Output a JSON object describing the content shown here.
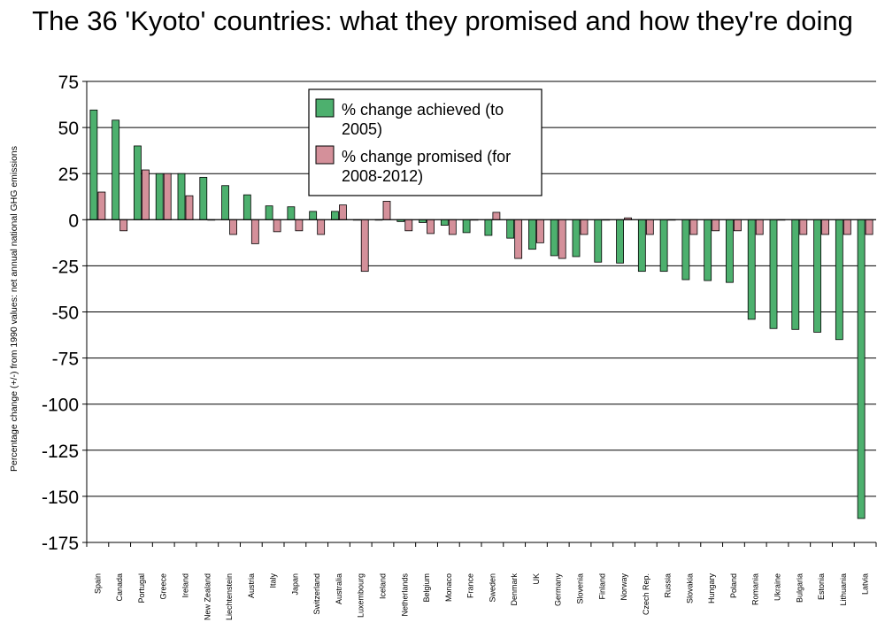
{
  "chart_data": {
    "type": "bar",
    "title": "The 36 'Kyoto' countries: what they promised and how they're doing",
    "ylabel": "Percentage change (+/-) from 1990 values: net annual national GHG emissions",
    "xlabel": "",
    "ylim": [
      -175,
      75
    ],
    "yticks": [
      75,
      50,
      25,
      0,
      -25,
      -50,
      -75,
      -100,
      -125,
      -150,
      -175
    ],
    "grid": true,
    "legend_position": "top-center",
    "categories": [
      "Spain",
      "Canada",
      "Portugal",
      "Greece",
      "Ireland",
      "New Zealand",
      "Liechtenstein",
      "Austria",
      "Italy",
      "Japan",
      "Switzerland",
      "Australia",
      "Luxembourg",
      "Iceland",
      "Netherlands",
      "Belgium",
      "Monaco",
      "France",
      "Sweden",
      "Denmark",
      "UK",
      "Germany",
      "Slovenia",
      "Finland",
      "Norway",
      "Czech Rep.",
      "Russia",
      "Slovakia",
      "Hungary",
      "Poland",
      "Romania",
      "Ukraine",
      "Bulgaria",
      "Estonia",
      "Lithuania",
      "Latvia"
    ],
    "series": [
      {
        "name": "% change achieved (to 2005)",
        "color": "#4db06e",
        "values": [
          59.5,
          54,
          40,
          25,
          25,
          23,
          18.5,
          13.5,
          7.5,
          7,
          4.5,
          4.5,
          0,
          0,
          -1,
          -1.5,
          -3,
          -7,
          -8.5,
          -10,
          -16,
          -19.5,
          -20,
          -23,
          -23.5,
          -28,
          -28,
          -32.5,
          -33,
          -34,
          -54,
          -59,
          -59.5,
          -61,
          -65,
          -162
        ]
      },
      {
        "name": "% change promised (for 2008-2012)",
        "color": "#d4909a",
        "values": [
          15,
          -6,
          27,
          25,
          13,
          0,
          -8,
          -13,
          -6.5,
          -6,
          -8,
          8,
          -28,
          10,
          -6,
          -7.5,
          -8,
          0,
          4,
          -21,
          -12.5,
          -21,
          -8,
          0,
          1,
          -8,
          0,
          -8,
          -6,
          -6,
          -8,
          0,
          -8,
          -8,
          -8,
          -8
        ]
      }
    ]
  }
}
